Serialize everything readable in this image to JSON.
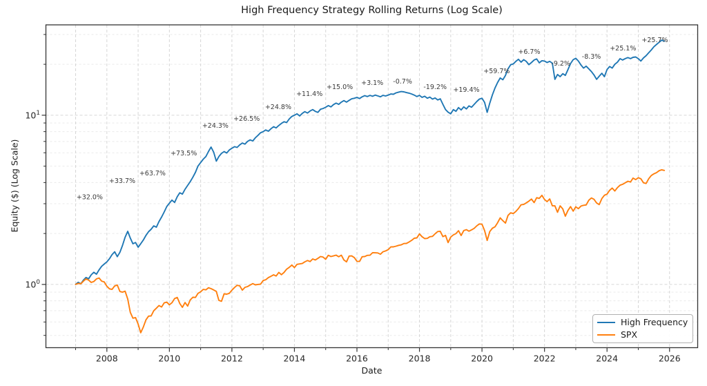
{
  "chart_data": {
    "type": "line",
    "title": "High Frequency Strategy Rolling Returns (Log Scale)",
    "xlabel": "Date",
    "ylabel": "Equity ($) (Log Scale)",
    "log_scale_y": true,
    "grid": "both, dashed, light-gray",
    "legend_position": "lower-right",
    "x_start_year": 2007.0,
    "x_step_years": 0.0833333,
    "xlim": [
      2006.05,
      2026.9
    ],
    "ylim": [
      0.423,
      34.2
    ],
    "x_major_ticks": [
      2008,
      2010,
      2012,
      2014,
      2016,
      2018,
      2020,
      2022,
      2024,
      2026
    ],
    "x_minor_ticks": [
      2007,
      2009,
      2011,
      2013,
      2015,
      2017,
      2019,
      2021,
      2023,
      2025
    ],
    "y_major_ticks": [
      {
        "value": 1,
        "base": "10",
        "exp": "0"
      },
      {
        "value": 10,
        "base": "10",
        "exp": "1"
      }
    ],
    "y_minor_ticks": [
      0.5,
      0.6,
      0.7,
      0.8,
      0.9,
      2,
      3,
      4,
      5,
      6,
      7,
      8,
      9,
      20,
      30
    ],
    "series": [
      {
        "name": "High Frequency",
        "color": "#1f77b4",
        "values": [
          1.0,
          1.03,
          1.01,
          1.06,
          1.1,
          1.08,
          1.14,
          1.18,
          1.15,
          1.22,
          1.28,
          1.32,
          1.36,
          1.42,
          1.5,
          1.56,
          1.46,
          1.55,
          1.7,
          1.9,
          2.06,
          1.88,
          1.74,
          1.77,
          1.66,
          1.74,
          1.83,
          1.95,
          2.05,
          2.12,
          2.22,
          2.18,
          2.35,
          2.5,
          2.68,
          2.89,
          3.02,
          3.15,
          3.05,
          3.3,
          3.48,
          3.42,
          3.65,
          3.85,
          4.05,
          4.3,
          4.6,
          5.01,
          5.25,
          5.5,
          5.7,
          6.1,
          6.48,
          6.05,
          5.35,
          5.7,
          5.95,
          6.1,
          5.98,
          6.23,
          6.38,
          6.52,
          6.45,
          6.68,
          6.85,
          6.75,
          7.0,
          7.15,
          7.05,
          7.35,
          7.6,
          7.88,
          8.0,
          8.18,
          8.05,
          8.32,
          8.55,
          8.42,
          8.7,
          8.95,
          9.15,
          9.05,
          9.5,
          9.84,
          10.0,
          10.2,
          9.9,
          10.25,
          10.5,
          10.3,
          10.6,
          10.8,
          10.55,
          10.4,
          10.85,
          10.96,
          11.15,
          11.4,
          11.2,
          11.55,
          11.8,
          11.6,
          11.95,
          12.2,
          11.95,
          12.25,
          12.5,
          12.6,
          12.75,
          12.55,
          12.85,
          13.05,
          12.9,
          13.1,
          12.95,
          13.15,
          13.0,
          12.85,
          13.1,
          12.99,
          13.15,
          13.35,
          13.3,
          13.55,
          13.7,
          13.8,
          13.75,
          13.6,
          13.5,
          13.35,
          13.15,
          12.9,
          13.1,
          12.75,
          12.95,
          12.6,
          12.8,
          12.45,
          12.65,
          12.3,
          12.5,
          11.6,
          10.8,
          10.43,
          10.2,
          10.8,
          10.55,
          11.1,
          10.75,
          11.2,
          10.9,
          11.35,
          11.15,
          11.6,
          12.05,
          12.45,
          12.6,
          11.9,
          10.4,
          11.8,
          13.2,
          14.5,
          15.6,
          16.6,
          16.2,
          17.2,
          18.8,
          19.88,
          20.1,
          20.8,
          21.4,
          20.6,
          21.3,
          20.8,
          19.9,
          20.5,
          21.2,
          21.5,
          20.4,
          21.0,
          20.9,
          20.5,
          20.8,
          20.3,
          16.3,
          17.4,
          16.9,
          17.6,
          17.2,
          18.6,
          20.2,
          21.3,
          21.7,
          20.9,
          19.8,
          19.0,
          19.5,
          18.8,
          18.1,
          17.3,
          16.3,
          17.0,
          17.7,
          16.9,
          18.6,
          19.4,
          19.0,
          20.0,
          20.6,
          21.6,
          21.2,
          21.6,
          21.9,
          21.6,
          22.0,
          22.1,
          21.6,
          20.9,
          21.8,
          22.5,
          23.4,
          24.3,
          25.4,
          26.2,
          27.0,
          27.8,
          27.4
        ]
      },
      {
        "name": "SPX",
        "color": "#ff7f0e",
        "values": [
          1.0,
          1.014,
          1.01,
          1.045,
          1.078,
          1.06,
          1.028,
          1.041,
          1.078,
          1.092,
          1.046,
          1.035,
          0.975,
          0.942,
          0.935,
          0.98,
          0.992,
          0.908,
          0.9,
          0.912,
          0.82,
          0.685,
          0.632,
          0.637,
          0.583,
          0.518,
          0.56,
          0.618,
          0.65,
          0.652,
          0.7,
          0.724,
          0.75,
          0.736,
          0.778,
          0.786,
          0.758,
          0.78,
          0.825,
          0.838,
          0.772,
          0.732,
          0.782,
          0.745,
          0.81,
          0.84,
          0.838,
          0.886,
          0.905,
          0.935,
          0.93,
          0.956,
          0.945,
          0.928,
          0.91,
          0.805,
          0.795,
          0.88,
          0.876,
          0.886,
          0.925,
          0.96,
          0.988,
          0.982,
          0.925,
          0.962,
          0.972,
          0.992,
          1.012,
          0.995,
          1.0,
          1.004,
          1.055,
          1.066,
          1.098,
          1.118,
          1.14,
          1.122,
          1.178,
          1.142,
          1.178,
          1.23,
          1.262,
          1.303,
          1.258,
          1.315,
          1.322,
          1.33,
          1.36,
          1.385,
          1.365,
          1.415,
          1.395,
          1.425,
          1.462,
          1.451,
          1.408,
          1.487,
          1.462,
          1.475,
          1.49,
          1.458,
          1.488,
          1.395,
          1.36,
          1.472,
          1.475,
          1.44,
          1.37,
          1.368,
          1.458,
          1.462,
          1.485,
          1.488,
          1.54,
          1.538,
          1.535,
          1.508,
          1.56,
          1.578,
          1.606,
          1.666,
          1.668,
          1.684,
          1.703,
          1.713,
          1.745,
          1.748,
          1.782,
          1.822,
          1.875,
          1.885,
          1.99,
          1.915,
          1.866,
          1.872,
          1.915,
          1.924,
          1.994,
          2.055,
          2.06,
          1.916,
          1.95,
          1.767,
          1.905,
          1.962,
          1.998,
          2.078,
          1.945,
          2.082,
          2.108,
          2.065,
          2.102,
          2.145,
          2.222,
          2.278,
          2.27,
          2.08,
          1.82,
          2.055,
          2.15,
          2.192,
          2.315,
          2.475,
          2.38,
          2.305,
          2.56,
          2.65,
          2.625,
          2.7,
          2.81,
          2.955,
          2.97,
          3.035,
          3.105,
          3.195,
          3.045,
          3.255,
          3.225,
          3.36,
          3.18,
          3.085,
          3.2,
          2.915,
          2.915,
          2.67,
          2.915,
          2.795,
          2.53,
          2.735,
          2.885,
          2.71,
          2.875,
          2.805,
          2.905,
          2.935,
          2.95,
          3.145,
          3.245,
          3.185,
          3.03,
          2.965,
          3.215,
          3.365,
          3.42,
          3.6,
          3.71,
          3.565,
          3.735,
          3.86,
          3.905,
          3.99,
          4.07,
          4.03,
          4.25,
          4.165,
          4.27,
          4.21,
          3.99,
          3.95,
          4.215,
          4.4,
          4.505,
          4.58,
          4.7,
          4.76,
          4.72
        ]
      }
    ],
    "annotations": [
      {
        "text": "+32.0%",
        "x": 2007.45,
        "y": 3.29
      },
      {
        "text": "+33.7%",
        "x": 2008.49,
        "y": 4.1
      },
      {
        "text": "+63.7%",
        "x": 2009.46,
        "y": 4.55
      },
      {
        "text": "+73.5%",
        "x": 2010.46,
        "y": 5.97
      },
      {
        "text": "+24.3%",
        "x": 2011.47,
        "y": 8.7
      },
      {
        "text": "+26.5%",
        "x": 2012.47,
        "y": 9.55
      },
      {
        "text": "+24.8%",
        "x": 2013.48,
        "y": 11.2
      },
      {
        "text": "+11.4%",
        "x": 2014.48,
        "y": 13.4
      },
      {
        "text": "+15.0%",
        "x": 2015.45,
        "y": 14.72
      },
      {
        "text": "+3.1%",
        "x": 2016.49,
        "y": 15.57
      },
      {
        "text": "-0.7%",
        "x": 2017.46,
        "y": 15.87
      },
      {
        "text": "-19.2%",
        "x": 2018.5,
        "y": 14.72
      },
      {
        "text": "+19.4%",
        "x": 2019.5,
        "y": 14.17
      },
      {
        "text": "+59.7%",
        "x": 2020.47,
        "y": 18.26
      },
      {
        "text": "+6.7%",
        "x": 2021.51,
        "y": 23.76
      },
      {
        "text": "-9.2%",
        "x": 2022.52,
        "y": 20.25
      },
      {
        "text": "-8.3%",
        "x": 2023.5,
        "y": 22.24
      },
      {
        "text": "+25.1%",
        "x": 2024.51,
        "y": 24.9
      },
      {
        "text": "+25.7%",
        "x": 2025.53,
        "y": 27.86
      }
    ],
    "styles": {
      "axes_rect": [
        66.5,
        36,
        1010.5,
        503.5
      ],
      "spine_color": "#333333",
      "tick_label_color": "#262626",
      "annotation_color": "#3a3a3a",
      "grid_major_color": "#d6d6d6",
      "grid_minor_color": "#e9e9e9",
      "line_width": 1.9
    }
  }
}
